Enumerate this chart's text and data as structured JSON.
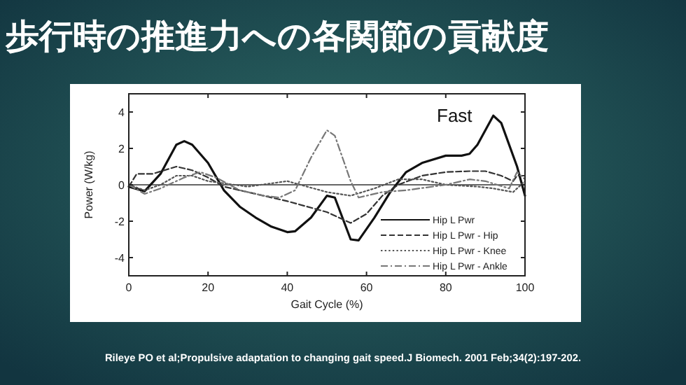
{
  "chart_data": {
    "type": "line",
    "title": "歩行時の推進力への各関節の貢献度",
    "xlabel": "Gait Cycle (%)",
    "ylabel": "Power (W/kg)",
    "annotations": [
      "Fast",
      "Rileye PO et al;Propulsive adaptation to changing gait speed.J Biomech. 2001 Feb;34(2):197-202."
    ],
    "xlim": [
      0,
      100
    ],
    "ylim": [
      -5,
      5
    ],
    "xticks": [
      0,
      20,
      40,
      60,
      80,
      100
    ],
    "yticks": [
      -4,
      -2,
      0,
      2,
      4
    ],
    "grid": false,
    "legend": "bottom right",
    "marker": "none",
    "ref_lines": [
      {
        "axis": "y",
        "value": 0,
        "color": "#666666"
      }
    ],
    "series": [
      {
        "name": "Hip L Pwr",
        "color": "#111111",
        "line_style": "solid",
        "x": [
          0,
          4,
          8,
          12,
          14,
          16,
          20,
          24,
          28,
          32,
          36,
          40,
          42,
          46,
          50,
          52,
          56,
          58,
          62,
          66,
          70,
          74,
          80,
          84,
          86,
          88,
          92,
          94,
          98,
          100
        ],
        "values": [
          -0.1,
          -0.35,
          0.6,
          2.2,
          2.4,
          2.2,
          1.2,
          -0.3,
          -1.2,
          -1.8,
          -2.3,
          -2.6,
          -2.55,
          -1.8,
          -0.6,
          -0.7,
          -3.0,
          -3.05,
          -1.8,
          -0.4,
          0.7,
          1.2,
          1.6,
          1.6,
          1.7,
          2.2,
          3.8,
          3.4,
          1.0,
          -0.6
        ]
      },
      {
        "name": "Hip L Pwr - Hip",
        "color": "#333333",
        "line_style": "dashed",
        "x": [
          0,
          2,
          6,
          12,
          16,
          20,
          24,
          30,
          40,
          50,
          56,
          60,
          64,
          68,
          74,
          80,
          86,
          90,
          94,
          97,
          98,
          100
        ],
        "values": [
          -0.1,
          0.6,
          0.6,
          1.0,
          0.8,
          0.4,
          -0.1,
          -0.4,
          -0.9,
          -1.5,
          -2.1,
          -1.6,
          -0.6,
          0.0,
          0.5,
          0.7,
          0.75,
          0.75,
          0.5,
          0.2,
          0.5,
          0.5
        ]
      },
      {
        "name": "Hip L Pwr - Knee",
        "color": "#555555",
        "line_style": "dotted",
        "x": [
          0,
          4,
          8,
          12,
          16,
          20,
          30,
          40,
          50,
          56,
          62,
          68,
          74,
          80,
          88,
          92,
          97,
          100
        ],
        "values": [
          0.0,
          -0.3,
          0.0,
          0.5,
          0.5,
          0.2,
          -0.1,
          0.2,
          -0.4,
          -0.6,
          -0.2,
          0.3,
          0.3,
          0.0,
          -0.1,
          -0.2,
          -0.4,
          0.2
        ]
      },
      {
        "name": "Hip L Pwr - Ankle",
        "color": "#777777",
        "line_style": "dashdot",
        "x": [
          0,
          4,
          8,
          14,
          18,
          22,
          28,
          34,
          38,
          42,
          46,
          50,
          52,
          56,
          58,
          64,
          70,
          80,
          86,
          90,
          96,
          98,
          100
        ],
        "values": [
          0.0,
          -0.5,
          -0.2,
          0.4,
          0.7,
          0.4,
          -0.3,
          -0.6,
          -0.7,
          -0.3,
          1.5,
          3.0,
          2.7,
          0.2,
          -0.7,
          -0.4,
          -0.3,
          0.0,
          0.3,
          0.2,
          -0.2,
          0.7,
          0.3
        ]
      }
    ]
  }
}
